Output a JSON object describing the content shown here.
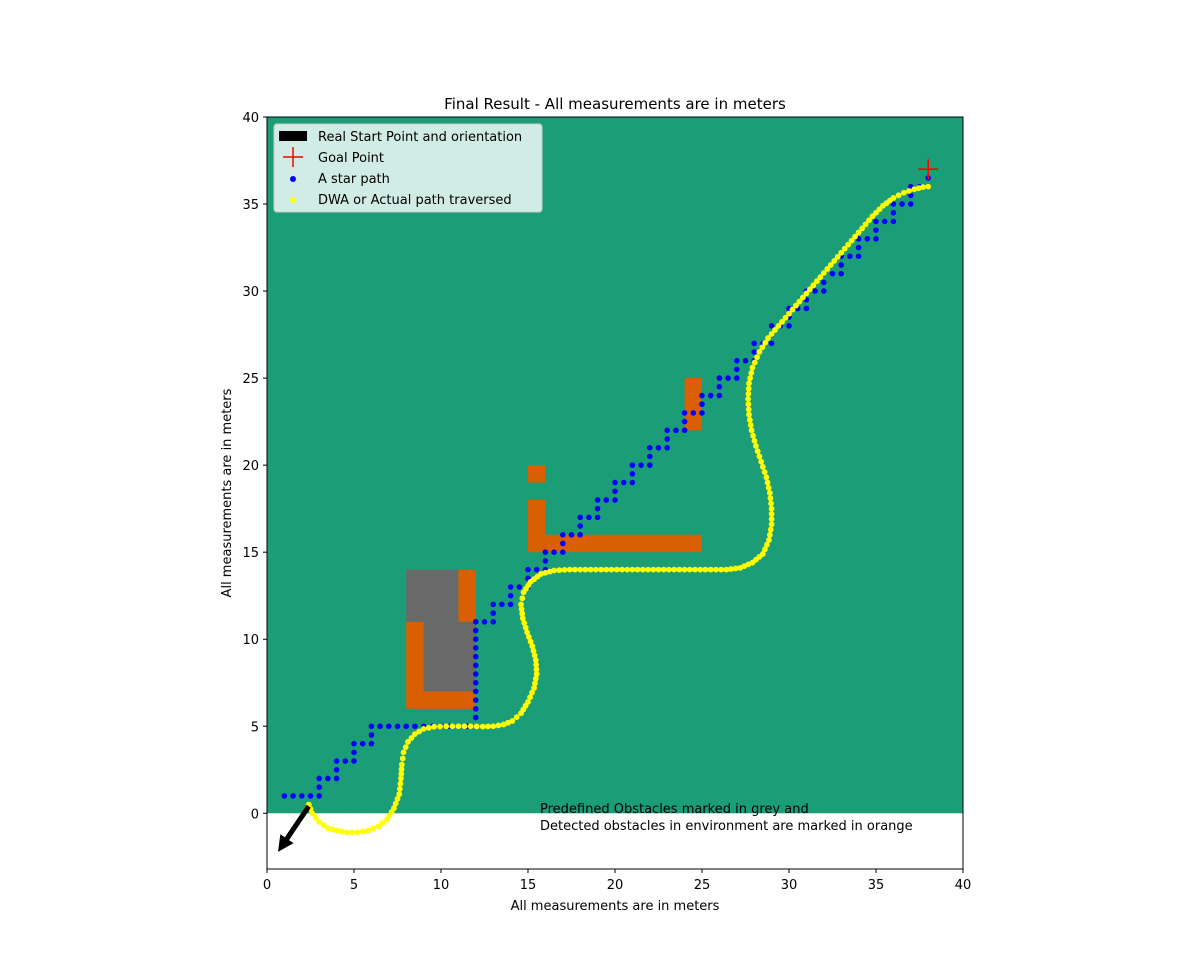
{
  "chart_data": {
    "type": "scatter",
    "title": "Final Result - All measurements are in meters",
    "xlabel": "All measurements are in meters",
    "ylabel": "All measurements are in meters",
    "xlim": [
      0,
      40
    ],
    "ylim": [
      -3.2,
      40
    ],
    "xticks": [
      0,
      5,
      10,
      15,
      20,
      25,
      30,
      35,
      40
    ],
    "yticks": [
      0,
      5,
      10,
      15,
      20,
      25,
      30,
      35,
      40
    ],
    "grid": false,
    "legend_position": "top-left",
    "legend": [
      {
        "label": "Real Start Point and orientation",
        "marker": "arrow"
      },
      {
        "label": "Goal Point",
        "marker": "plus"
      },
      {
        "label": "A star path",
        "marker": "dot"
      },
      {
        "label": "DWA or Actual path traversed",
        "marker": "dot"
      }
    ],
    "colors": {
      "background": "#1b9e77",
      "predefined_obstacle": "#696969",
      "detected_obstacle": "#d95f02",
      "a_star": "#0000ff",
      "dwa": "#ffff00",
      "goal": "#ff0000",
      "start_arrow": "#000000"
    },
    "annotation": "Predefined Obstacles marked in grey and\nDetected obstacles in environment are marked in orange",
    "start": {
      "x": 2.4,
      "y": 0.4,
      "heading_deg": 236
    },
    "goal": {
      "x": 38,
      "y": 37
    },
    "map_extent": {
      "x": [
        0,
        40
      ],
      "y": [
        0,
        40
      ]
    },
    "predefined_obstacles": [
      {
        "x": 8,
        "y": 11,
        "w": 3,
        "h": 3
      },
      {
        "x": 9,
        "y": 7,
        "w": 3,
        "h": 4
      }
    ],
    "detected_obstacles": [
      {
        "x": 11,
        "y": 11,
        "w": 1,
        "h": 3
      },
      {
        "x": 8,
        "y": 6,
        "w": 1,
        "h": 5
      },
      {
        "x": 9,
        "y": 6,
        "w": 3,
        "h": 1
      },
      {
        "x": 15,
        "y": 19,
        "w": 1,
        "h": 1
      },
      {
        "x": 15,
        "y": 15,
        "w": 1,
        "h": 3
      },
      {
        "x": 16,
        "y": 15,
        "w": 9,
        "h": 1
      },
      {
        "x": 24,
        "y": 22,
        "w": 1,
        "h": 3
      }
    ],
    "a_star_path": [
      [
        1,
        1
      ],
      [
        1.5,
        1
      ],
      [
        2,
        1
      ],
      [
        2.5,
        1
      ],
      [
        3,
        1
      ],
      [
        3,
        1.5
      ],
      [
        3,
        2
      ],
      [
        3.5,
        2
      ],
      [
        4,
        2
      ],
      [
        4,
        2.5
      ],
      [
        4,
        3
      ],
      [
        4.5,
        3
      ],
      [
        5,
        3
      ],
      [
        5,
        3.5
      ],
      [
        5,
        4
      ],
      [
        5.5,
        4
      ],
      [
        6,
        4
      ],
      [
        6,
        4.5
      ],
      [
        6,
        5
      ],
      [
        6.5,
        5
      ],
      [
        7,
        5
      ],
      [
        7.5,
        5
      ],
      [
        8,
        5
      ],
      [
        8.5,
        5
      ],
      [
        9,
        5
      ],
      [
        9.5,
        5
      ],
      [
        10,
        5
      ],
      [
        10.5,
        5
      ],
      [
        11,
        5
      ],
      [
        11.5,
        5
      ],
      [
        12,
        5.5
      ],
      [
        12,
        6
      ],
      [
        12,
        6.5
      ],
      [
        12,
        7
      ],
      [
        12,
        7.5
      ],
      [
        12,
        8
      ],
      [
        12,
        8.5
      ],
      [
        12,
        9
      ],
      [
        12,
        9.5
      ],
      [
        12,
        10
      ],
      [
        12,
        10.5
      ],
      [
        12,
        11
      ],
      [
        12.5,
        11
      ],
      [
        13,
        11
      ],
      [
        13,
        11.5
      ],
      [
        13,
        12
      ],
      [
        13.5,
        12
      ],
      [
        14,
        12
      ],
      [
        14,
        12.5
      ],
      [
        14,
        13
      ],
      [
        14.5,
        13
      ],
      [
        15,
        13
      ],
      [
        15,
        13.5
      ],
      [
        15,
        14
      ],
      [
        15.5,
        14
      ],
      [
        16,
        14
      ],
      [
        16,
        14.5
      ],
      [
        16,
        15
      ],
      [
        16.5,
        15
      ],
      [
        17,
        15
      ],
      [
        17,
        15.5
      ],
      [
        17,
        16
      ],
      [
        17.5,
        16
      ],
      [
        18,
        16
      ],
      [
        18,
        16.5
      ],
      [
        18,
        17
      ],
      [
        18.5,
        17
      ],
      [
        19,
        17
      ],
      [
        19,
        17.5
      ],
      [
        19,
        18
      ],
      [
        19.5,
        18
      ],
      [
        20,
        18
      ],
      [
        20,
        18.5
      ],
      [
        20,
        19
      ],
      [
        20.5,
        19
      ],
      [
        21,
        19
      ],
      [
        21,
        19.5
      ],
      [
        21,
        20
      ],
      [
        21.5,
        20
      ],
      [
        22,
        20
      ],
      [
        22,
        20.5
      ],
      [
        22,
        21
      ],
      [
        22.5,
        21
      ],
      [
        23,
        21
      ],
      [
        23,
        21.5
      ],
      [
        23,
        22
      ],
      [
        23.5,
        22
      ],
      [
        24,
        22
      ],
      [
        24,
        22.5
      ],
      [
        24,
        23
      ],
      [
        24.5,
        23
      ],
      [
        25,
        23
      ],
      [
        25,
        23.5
      ],
      [
        25,
        24
      ],
      [
        25.5,
        24
      ],
      [
        26,
        24
      ],
      [
        26,
        24.5
      ],
      [
        26,
        25
      ],
      [
        26.5,
        25
      ],
      [
        27,
        25
      ],
      [
        27,
        25.5
      ],
      [
        27,
        26
      ],
      [
        27.5,
        26
      ],
      [
        28,
        26
      ],
      [
        28,
        26.5
      ],
      [
        28,
        27
      ],
      [
        28.5,
        27
      ],
      [
        29,
        27
      ],
      [
        29,
        27.5
      ],
      [
        29,
        28
      ],
      [
        29.5,
        28
      ],
      [
        30,
        28
      ],
      [
        30,
        28.5
      ],
      [
        30,
        29
      ],
      [
        30.5,
        29
      ],
      [
        31,
        29
      ],
      [
        31,
        29.5
      ],
      [
        31,
        30
      ],
      [
        31.5,
        30
      ],
      [
        32,
        30
      ],
      [
        32,
        30.5
      ],
      [
        32,
        31
      ],
      [
        32.5,
        31
      ],
      [
        33,
        31
      ],
      [
        33,
        31.5
      ],
      [
        33,
        32
      ],
      [
        33.5,
        32
      ],
      [
        34,
        32
      ],
      [
        34,
        32.5
      ],
      [
        34,
        33
      ],
      [
        34.5,
        33
      ],
      [
        35,
        33
      ],
      [
        35,
        33.5
      ],
      [
        35,
        34
      ],
      [
        35.5,
        34
      ],
      [
        36,
        34
      ],
      [
        36,
        34.5
      ],
      [
        36,
        35
      ],
      [
        36.5,
        35
      ],
      [
        37,
        35
      ],
      [
        37,
        35.5
      ],
      [
        37,
        36
      ],
      [
        37.5,
        36
      ],
      [
        38,
        36
      ],
      [
        38,
        36.5
      ]
    ],
    "dwa_path": [
      [
        2.4,
        0.5
      ],
      [
        2.6,
        0
      ],
      [
        3,
        -0.5
      ],
      [
        3.5,
        -0.85
      ],
      [
        4,
        -1
      ],
      [
        4.6,
        -1.1
      ],
      [
        5.2,
        -1.1
      ],
      [
        5.8,
        -1
      ],
      [
        6.4,
        -0.75
      ],
      [
        6.9,
        -0.35
      ],
      [
        7.3,
        0.3
      ],
      [
        7.6,
        1.1
      ],
      [
        7.7,
        2
      ],
      [
        7.75,
        2.8
      ],
      [
        7.85,
        3.5
      ],
      [
        8.1,
        4.1
      ],
      [
        8.5,
        4.55
      ],
      [
        9,
        4.85
      ],
      [
        9.6,
        4.97
      ],
      [
        10.3,
        5
      ],
      [
        11,
        5
      ],
      [
        11.7,
        5
      ],
      [
        12.4,
        4.98
      ],
      [
        13,
        5
      ],
      [
        13.6,
        5.1
      ],
      [
        14.1,
        5.3
      ],
      [
        14.6,
        5.75
      ],
      [
        15,
        6.4
      ],
      [
        15.35,
        7.2
      ],
      [
        15.5,
        8
      ],
      [
        15.45,
        8.8
      ],
      [
        15.25,
        9.6
      ],
      [
        14.95,
        10.4
      ],
      [
        14.7,
        11.2
      ],
      [
        14.6,
        12
      ],
      [
        14.75,
        12.7
      ],
      [
        15.15,
        13.3
      ],
      [
        15.75,
        13.75
      ],
      [
        16.5,
        13.95
      ],
      [
        17.4,
        14
      ],
      [
        18.3,
        14
      ],
      [
        19.2,
        14
      ],
      [
        20.1,
        14
      ],
      [
        21,
        14
      ],
      [
        21.9,
        14
      ],
      [
        22.8,
        14
      ],
      [
        23.7,
        14
      ],
      [
        24.6,
        14
      ],
      [
        25.5,
        14
      ],
      [
        26.4,
        14
      ],
      [
        27.2,
        14.1
      ],
      [
        27.9,
        14.4
      ],
      [
        28.5,
        14.9
      ],
      [
        28.85,
        15.7
      ],
      [
        29,
        16.6
      ],
      [
        29,
        17.5
      ],
      [
        28.9,
        18.4
      ],
      [
        28.7,
        19.3
      ],
      [
        28.4,
        20.2
      ],
      [
        28.1,
        21.1
      ],
      [
        27.85,
        22
      ],
      [
        27.7,
        22.9
      ],
      [
        27.65,
        23.8
      ],
      [
        27.7,
        24.7
      ],
      [
        27.9,
        25.6
      ],
      [
        28.3,
        26.5
      ],
      [
        28.8,
        27.3
      ],
      [
        29.4,
        28
      ],
      [
        30,
        28.7
      ],
      [
        30.6,
        29.4
      ],
      [
        31.2,
        30.1
      ],
      [
        31.8,
        30.8
      ],
      [
        32.4,
        31.5
      ],
      [
        33,
        32.2
      ],
      [
        33.6,
        32.9
      ],
      [
        34.2,
        33.6
      ],
      [
        34.8,
        34.3
      ],
      [
        35.4,
        34.9
      ],
      [
        36,
        35.35
      ],
      [
        36.6,
        35.65
      ],
      [
        37.2,
        35.85
      ],
      [
        37.7,
        35.97
      ],
      [
        38,
        36
      ]
    ]
  }
}
